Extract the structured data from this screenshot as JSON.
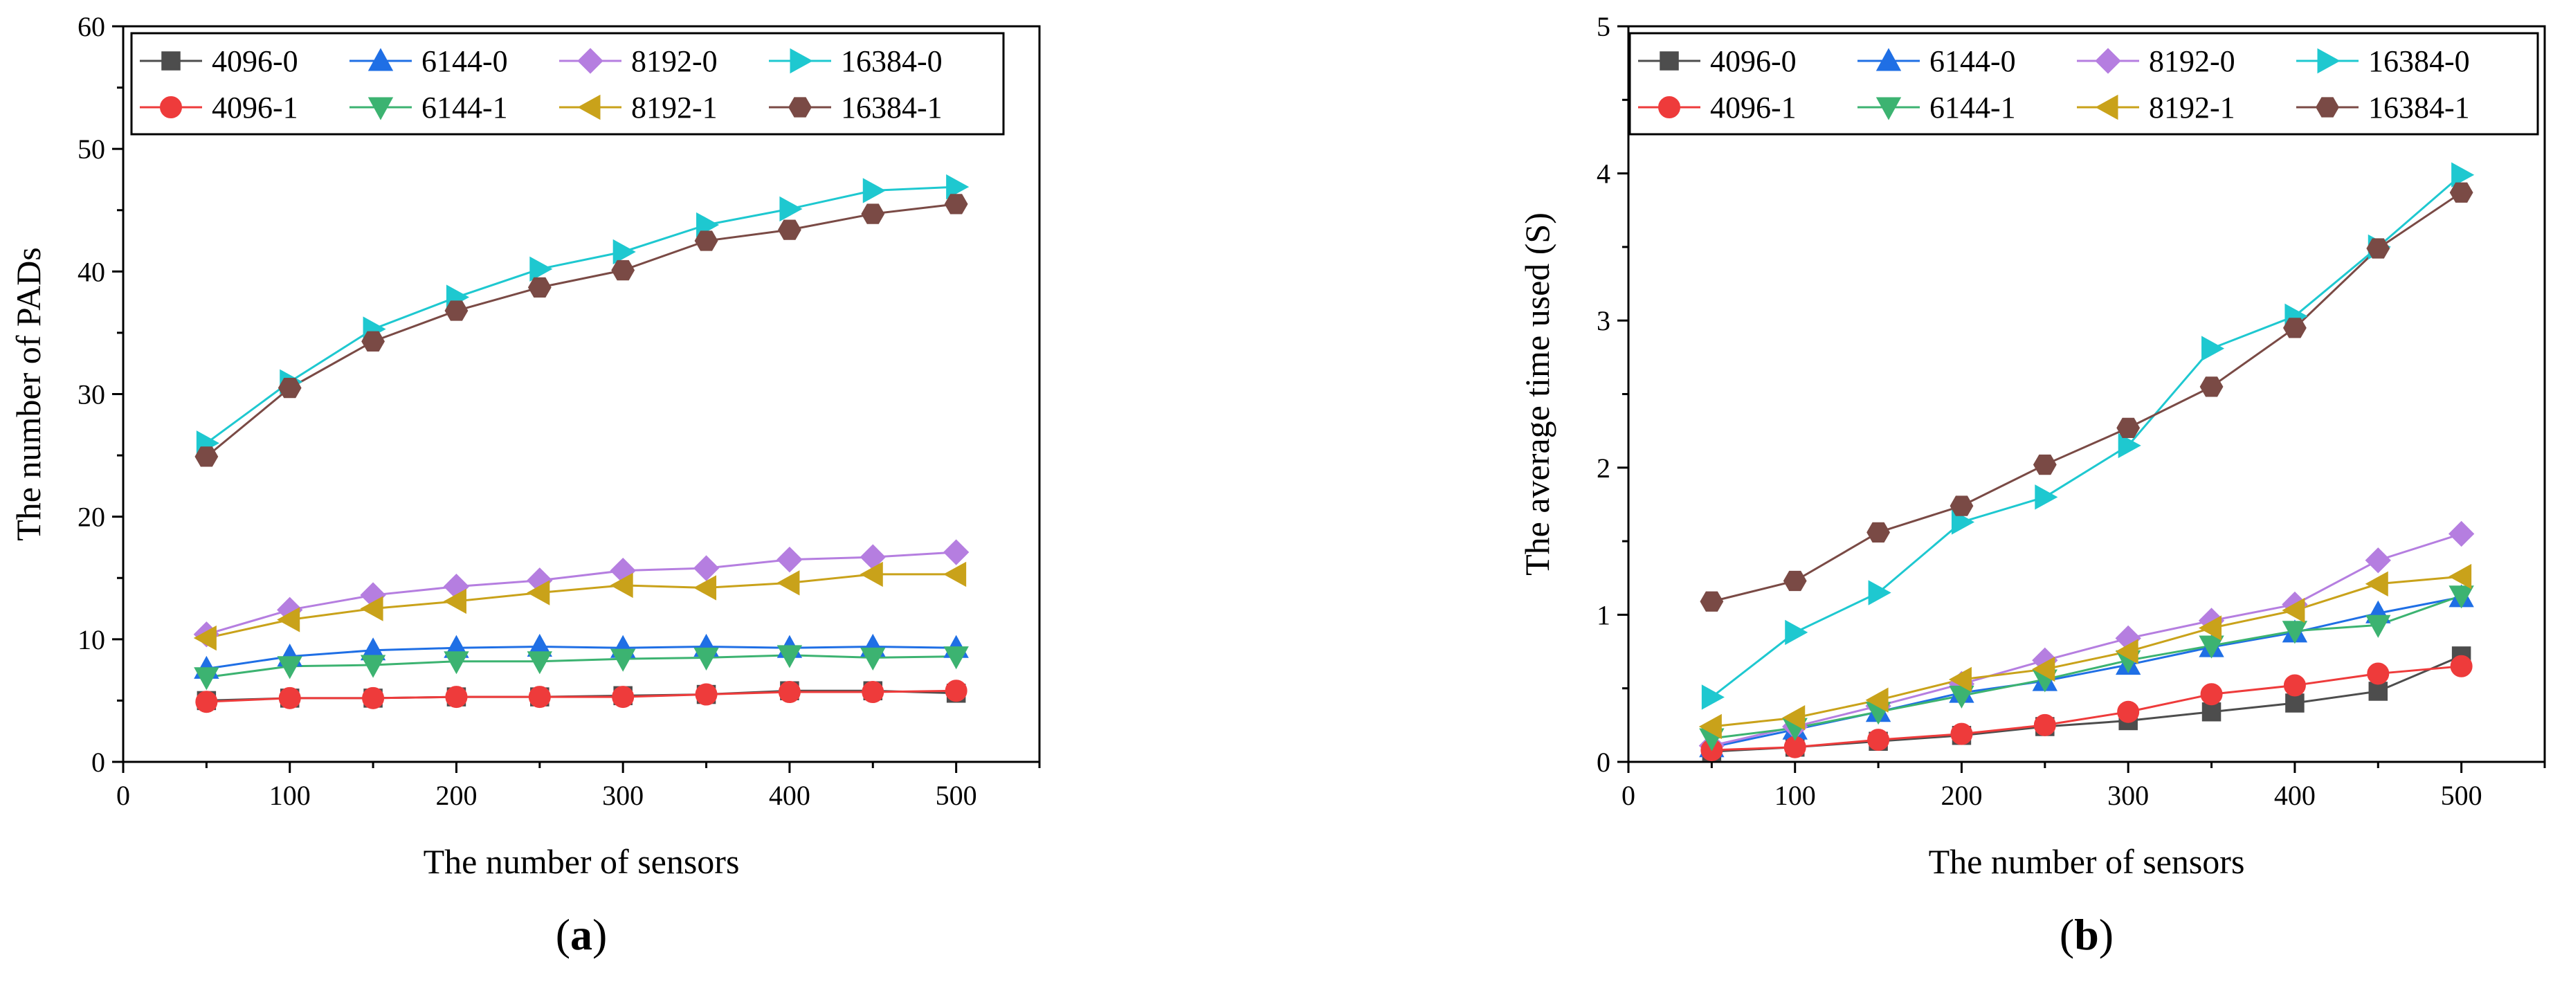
{
  "chart_data": [
    {
      "type": "line",
      "panel": "a",
      "caption_open": "(",
      "caption_letter": "a",
      "caption_close": ")",
      "xlabel": "The number of sensors",
      "ylabel": "The number of PADs",
      "xlim": [
        0,
        550
      ],
      "ylim": [
        0,
        60
      ],
      "xticks": [
        0,
        100,
        200,
        300,
        400,
        500
      ],
      "yticks": [
        0,
        10,
        20,
        30,
        40,
        50,
        60
      ],
      "x": [
        50,
        100,
        150,
        200,
        250,
        300,
        350,
        400,
        450,
        500
      ],
      "legend_position": "top",
      "series": [
        {
          "name": "4096-0",
          "color": "#4d4d4d",
          "marker": "square",
          "values": [
            5.0,
            5.2,
            5.2,
            5.3,
            5.3,
            5.4,
            5.5,
            5.8,
            5.8,
            5.6
          ]
        },
        {
          "name": "6144-0",
          "color": "#1f6fe5",
          "marker": "triangle-up",
          "values": [
            7.6,
            8.6,
            9.1,
            9.3,
            9.4,
            9.3,
            9.4,
            9.3,
            9.4,
            9.3
          ]
        },
        {
          "name": "8192-0",
          "color": "#b57ee0",
          "marker": "diamond",
          "values": [
            10.4,
            12.4,
            13.6,
            14.3,
            14.8,
            15.6,
            15.8,
            16.5,
            16.7,
            17.1
          ]
        },
        {
          "name": "16384-0",
          "color": "#1ec8d0",
          "marker": "triangle-right",
          "values": [
            26.0,
            31.0,
            35.3,
            37.9,
            40.2,
            41.6,
            43.8,
            45.1,
            46.6,
            46.9
          ]
        },
        {
          "name": "4096-1",
          "color": "#ee3b3b",
          "marker": "circle",
          "values": [
            4.9,
            5.2,
            5.2,
            5.3,
            5.3,
            5.3,
            5.5,
            5.7,
            5.7,
            5.8
          ]
        },
        {
          "name": "6144-1",
          "color": "#3cb371",
          "marker": "triangle-down",
          "values": [
            6.9,
            7.8,
            7.9,
            8.2,
            8.2,
            8.4,
            8.5,
            8.7,
            8.5,
            8.6
          ]
        },
        {
          "name": "8192-1",
          "color": "#c9a21a",
          "marker": "triangle-left",
          "values": [
            10.1,
            11.6,
            12.5,
            13.1,
            13.8,
            14.4,
            14.2,
            14.6,
            15.3,
            15.3
          ]
        },
        {
          "name": "16384-1",
          "color": "#7a4a45",
          "marker": "hexagon",
          "values": [
            24.9,
            30.5,
            34.3,
            36.8,
            38.7,
            40.1,
            42.5,
            43.4,
            44.7,
            45.5
          ]
        }
      ]
    },
    {
      "type": "line",
      "panel": "b",
      "caption_open": "(",
      "caption_letter": "b",
      "caption_close": ")",
      "xlabel": "The number of sensors",
      "ylabel": "The average time used (S)",
      "xlim": [
        0,
        550
      ],
      "ylim": [
        0,
        5
      ],
      "xticks": [
        0,
        100,
        200,
        300,
        400,
        500
      ],
      "yticks": [
        0,
        1,
        2,
        3,
        4,
        5
      ],
      "x": [
        50,
        100,
        150,
        200,
        250,
        300,
        350,
        400,
        450,
        500
      ],
      "legend_position": "top",
      "series": [
        {
          "name": "4096-0",
          "color": "#4d4d4d",
          "marker": "square",
          "values": [
            0.07,
            0.1,
            0.14,
            0.18,
            0.24,
            0.28,
            0.34,
            0.4,
            0.48,
            0.72
          ]
        },
        {
          "name": "6144-0",
          "color": "#1f6fe5",
          "marker": "triangle-up",
          "values": [
            0.1,
            0.22,
            0.34,
            0.47,
            0.55,
            0.66,
            0.78,
            0.88,
            1.01,
            1.12
          ]
        },
        {
          "name": "8192-0",
          "color": "#b57ee0",
          "marker": "diamond",
          "values": [
            0.11,
            0.24,
            0.38,
            0.53,
            0.69,
            0.84,
            0.96,
            1.07,
            1.37,
            1.55
          ]
        },
        {
          "name": "16384-0",
          "color": "#1ec8d0",
          "marker": "triangle-right",
          "values": [
            0.44,
            0.88,
            1.15,
            1.63,
            1.8,
            2.15,
            2.81,
            3.03,
            3.5,
            3.99
          ]
        },
        {
          "name": "4096-1",
          "color": "#ee3b3b",
          "marker": "circle",
          "values": [
            0.08,
            0.1,
            0.15,
            0.19,
            0.25,
            0.34,
            0.46,
            0.52,
            0.6,
            0.65
          ]
        },
        {
          "name": "6144-1",
          "color": "#3cb371",
          "marker": "triangle-down",
          "values": [
            0.16,
            0.23,
            0.34,
            0.45,
            0.56,
            0.69,
            0.79,
            0.89,
            0.93,
            1.13
          ]
        },
        {
          "name": "8192-1",
          "color": "#c9a21a",
          "marker": "triangle-left",
          "values": [
            0.24,
            0.3,
            0.42,
            0.56,
            0.63,
            0.75,
            0.91,
            1.03,
            1.21,
            1.26
          ]
        },
        {
          "name": "16384-1",
          "color": "#7a4a45",
          "marker": "hexagon",
          "values": [
            1.09,
            1.23,
            1.56,
            1.74,
            2.02,
            2.27,
            2.55,
            2.95,
            3.49,
            3.87
          ]
        }
      ]
    }
  ]
}
